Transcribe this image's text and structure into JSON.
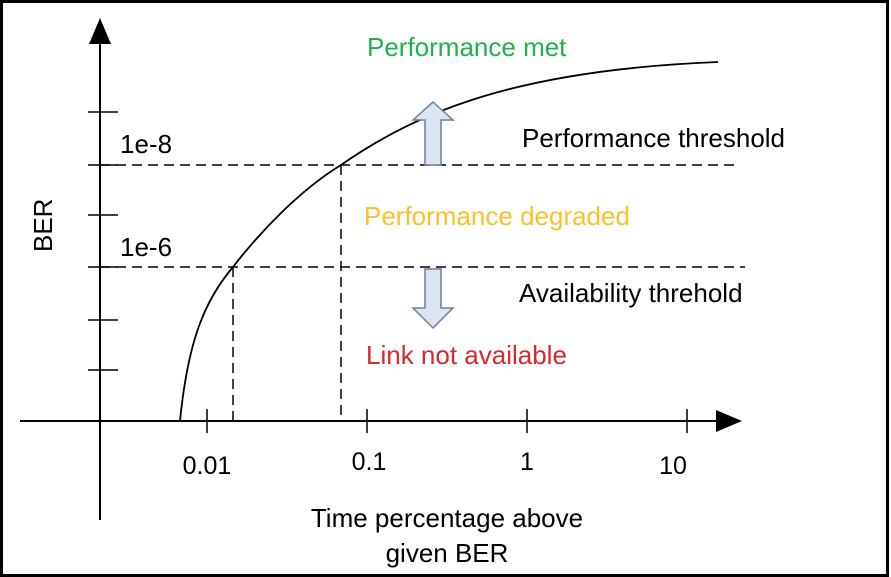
{
  "y_axis_label": "BER",
  "x_axis_label_line1": "Time percentage above",
  "x_axis_label_line2": "given BER",
  "x_ticks": [
    "0.01",
    "0.1",
    "1",
    "10"
  ],
  "y_levels": [
    "1e-8",
    "1e-6"
  ],
  "regions": {
    "performance_met": "Performance met",
    "performance_degraded": "Performance degraded",
    "link_not_available": "Link not available"
  },
  "thresholds": {
    "performance": "Performance threshold",
    "availability": "Availability threhold"
  },
  "colors": {
    "performance_met": "#22b04a",
    "performance_degraded": "#f9c12d",
    "link_not_available": "#d42a2a",
    "arrow_fill": "#dbe5f1",
    "arrow_stroke": "#6f7f95"
  }
}
